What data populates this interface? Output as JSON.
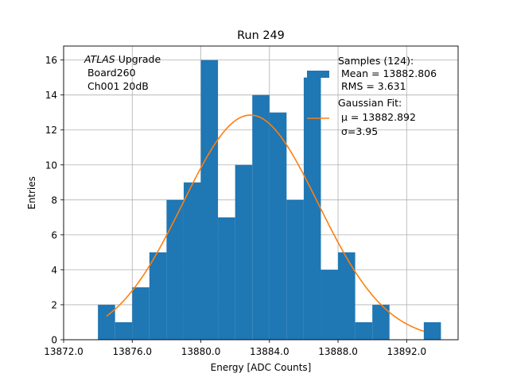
{
  "chart_data": {
    "type": "bar",
    "title": "Run 249",
    "xlabel": "Energy [ADC Counts]",
    "ylabel": "Entries",
    "xlim": [
      13872.0,
      13895.0
    ],
    "ylim": [
      0,
      16.8
    ],
    "xticks": [
      13872.0,
      13876.0,
      13880.0,
      13884.0,
      13888.0,
      13892.0
    ],
    "xtick_labels": [
      "13872.0",
      "13876.0",
      "13880.0",
      "13884.0",
      "13888.0",
      "13892.0"
    ],
    "yticks": [
      0,
      2,
      4,
      6,
      8,
      10,
      12,
      14,
      16
    ],
    "ytick_labels": [
      "0",
      "2",
      "4",
      "6",
      "8",
      "10",
      "12",
      "14",
      "16"
    ],
    "grid": true,
    "histogram": {
      "name": "Samples",
      "color": "#1f77b4",
      "bin_edges": [
        13874.0,
        13875.0,
        13876.0,
        13877.0,
        13878.0,
        13879.0,
        13880.0,
        13881.0,
        13882.0,
        13883.0,
        13884.0,
        13885.0,
        13886.0,
        13887.0,
        13888.0,
        13889.0,
        13890.0,
        13891.0,
        13892.0,
        13893.0,
        13894.0
      ],
      "counts": [
        2,
        1,
        3,
        5,
        8,
        9,
        16,
        7,
        10,
        14,
        13,
        8,
        15,
        4,
        5,
        1,
        2,
        0,
        0,
        1
      ]
    },
    "fit": {
      "name": "Gaussian Fit",
      "color": "#ff7f0e",
      "mu": 13882.892,
      "sigma": 3.95,
      "amplitude": 12.85,
      "x_range": [
        13874.5,
        13893.0
      ]
    },
    "annotation_lines": [
      "ATLAS Upgrade",
      " Board260",
      " Ch001 20dB"
    ],
    "legend": {
      "position": "top-right",
      "samples_lines": [
        "Samples (124):",
        " Mean = 13882.806",
        " RMS = 3.631"
      ],
      "fit_lines": [
        "Gaussian Fit:",
        " μ = 13882.892",
        " σ=3.95"
      ]
    }
  }
}
